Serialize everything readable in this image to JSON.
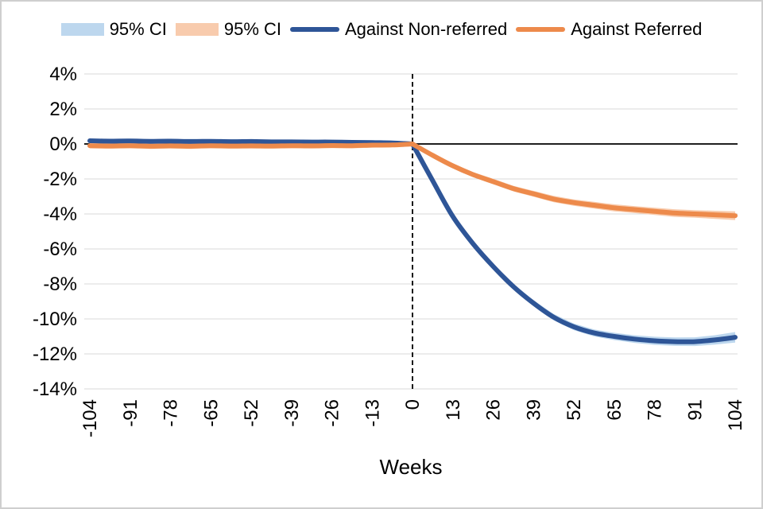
{
  "frame": {
    "background_color": "#ffffff",
    "border_color": "#CFCFCF"
  },
  "legend": {
    "position": "top",
    "items": [
      {
        "type": "band",
        "label": "95% CI",
        "color": "#BDD7EE"
      },
      {
        "type": "band",
        "label": "95% CI",
        "color": "#F8CBAD"
      },
      {
        "type": "line",
        "label": "Against Non-referred",
        "color": "#2E5597"
      },
      {
        "type": "line",
        "label": "Against Referred",
        "color": "#ED8A4B"
      }
    ]
  },
  "chart_data": {
    "type": "line",
    "title": "",
    "xlabel": "Weeks",
    "ylabel": "",
    "xlim": [
      -104,
      104
    ],
    "ylim": [
      -14,
      4
    ],
    "x_ticks": [
      -104,
      -91,
      -78,
      -65,
      -52,
      -39,
      -26,
      -13,
      0,
      13,
      26,
      39,
      52,
      65,
      78,
      91,
      104
    ],
    "y_ticks": [
      4,
      2,
      0,
      -2,
      -4,
      -6,
      -8,
      -10,
      -12,
      -14
    ],
    "y_tick_suffix": "%",
    "grid": "horizontal",
    "gridline_color": "#D9D9D9",
    "zero_line": {
      "y": 0,
      "color": "#000000"
    },
    "event_line": {
      "x": 0,
      "style": "dashed",
      "color": "#000000"
    },
    "legend_position": "top",
    "series": [
      {
        "name": "Against Non-referred",
        "color": "#2E5597",
        "ci_label": "95% CI",
        "ci_color": "#BDD7EE",
        "points_format": [
          "week",
          "effect_pct",
          "ci_halfwidth_pct"
        ],
        "points": [
          [
            -104,
            0.18,
            0.12
          ],
          [
            -97.5,
            0.16,
            0.12
          ],
          [
            -91,
            0.17,
            0.12
          ],
          [
            -84.5,
            0.15,
            0.12
          ],
          [
            -78,
            0.16,
            0.12
          ],
          [
            -71.5,
            0.14,
            0.12
          ],
          [
            -65,
            0.15,
            0.12
          ],
          [
            -58.5,
            0.13,
            0.12
          ],
          [
            -52,
            0.14,
            0.12
          ],
          [
            -45.5,
            0.12,
            0.12
          ],
          [
            -39,
            0.12,
            0.12
          ],
          [
            -32.5,
            0.11,
            0.12
          ],
          [
            -26,
            0.11,
            0.12
          ],
          [
            -19.5,
            0.09,
            0.12
          ],
          [
            -13,
            0.08,
            0.11
          ],
          [
            -6.5,
            0.06,
            0.1
          ],
          [
            0,
            0.0,
            0.08
          ],
          [
            6.5,
            -2.1,
            0.1
          ],
          [
            13,
            -4.15,
            0.12
          ],
          [
            19.5,
            -5.7,
            0.14
          ],
          [
            26,
            -7.0,
            0.15
          ],
          [
            32.5,
            -8.15,
            0.16
          ],
          [
            39,
            -9.1,
            0.17
          ],
          [
            45.5,
            -9.9,
            0.18
          ],
          [
            52,
            -10.45,
            0.19
          ],
          [
            58.5,
            -10.8,
            0.2
          ],
          [
            65,
            -11.0,
            0.21
          ],
          [
            71.5,
            -11.15,
            0.22
          ],
          [
            78,
            -11.25,
            0.23
          ],
          [
            84.5,
            -11.3,
            0.24
          ],
          [
            91,
            -11.3,
            0.25
          ],
          [
            97.5,
            -11.2,
            0.27
          ],
          [
            104,
            -11.05,
            0.3
          ]
        ]
      },
      {
        "name": "Against Referred",
        "color": "#ED8A4B",
        "ci_label": "95% CI",
        "ci_color": "#F8CBAD",
        "points_format": [
          "week",
          "effect_pct",
          "ci_halfwidth_pct"
        ],
        "points": [
          [
            -104,
            -0.1,
            0.15
          ],
          [
            -97.5,
            -0.12,
            0.15
          ],
          [
            -91,
            -0.1,
            0.15
          ],
          [
            -84.5,
            -0.13,
            0.15
          ],
          [
            -78,
            -0.11,
            0.15
          ],
          [
            -71.5,
            -0.13,
            0.15
          ],
          [
            -65,
            -0.1,
            0.15
          ],
          [
            -58.5,
            -0.12,
            0.15
          ],
          [
            -52,
            -0.11,
            0.15
          ],
          [
            -45.5,
            -0.12,
            0.15
          ],
          [
            -39,
            -0.1,
            0.15
          ],
          [
            -32.5,
            -0.11,
            0.15
          ],
          [
            -26,
            -0.09,
            0.15
          ],
          [
            -19.5,
            -0.1,
            0.15
          ],
          [
            -13,
            -0.07,
            0.14
          ],
          [
            -6.5,
            -0.06,
            0.12
          ],
          [
            0,
            0.0,
            0.1
          ],
          [
            6.5,
            -0.65,
            0.12
          ],
          [
            13,
            -1.25,
            0.14
          ],
          [
            19.5,
            -1.75,
            0.15
          ],
          [
            26,
            -2.15,
            0.16
          ],
          [
            32.5,
            -2.55,
            0.16
          ],
          [
            39,
            -2.85,
            0.17
          ],
          [
            45.5,
            -3.15,
            0.18
          ],
          [
            52,
            -3.35,
            0.18
          ],
          [
            58.5,
            -3.5,
            0.19
          ],
          [
            65,
            -3.65,
            0.2
          ],
          [
            71.5,
            -3.75,
            0.2
          ],
          [
            78,
            -3.85,
            0.21
          ],
          [
            84.5,
            -3.95,
            0.22
          ],
          [
            91,
            -4.0,
            0.22
          ],
          [
            97.5,
            -4.05,
            0.23
          ],
          [
            104,
            -4.1,
            0.25
          ]
        ]
      }
    ]
  }
}
